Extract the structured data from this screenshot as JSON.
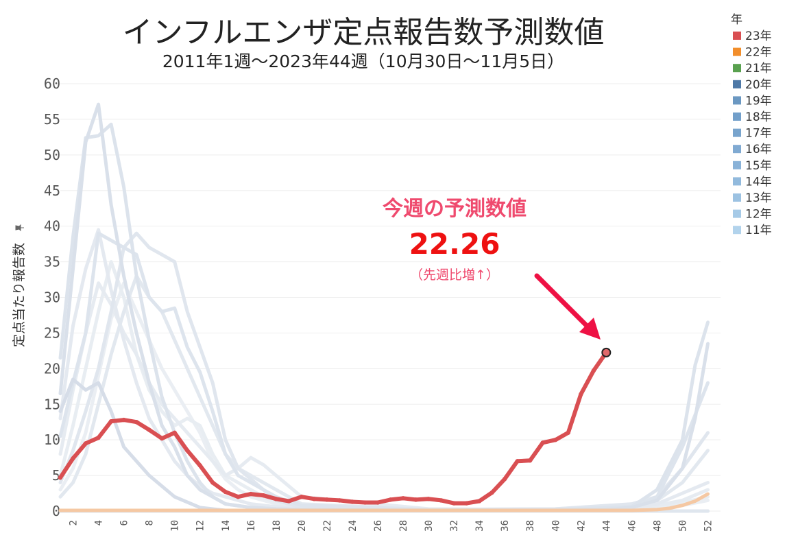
{
  "chart_data": {
    "type": "line",
    "title": "インフルエンザ定点報告数予測数値",
    "subtitle": "2011年1週～2023年44週（10月30日～11月5日）",
    "ylabel": "定点当たり報告数",
    "ylabel_icon": "pin-icon",
    "ylim": [
      0,
      60
    ],
    "yticks": [
      0,
      5,
      10,
      15,
      20,
      25,
      30,
      35,
      40,
      45,
      50,
      55,
      60
    ],
    "xlim": [
      1,
      53
    ],
    "xticks": [
      2,
      4,
      6,
      8,
      10,
      12,
      14,
      16,
      18,
      20,
      22,
      24,
      26,
      28,
      30,
      32,
      34,
      36,
      38,
      40,
      42,
      44,
      46,
      48,
      50,
      52
    ],
    "grid": true,
    "legend": {
      "title": "年",
      "position": "top-right",
      "entries": [
        {
          "label": "23年",
          "color": "#d94f52"
        },
        {
          "label": "22年",
          "color": "#f28e2b"
        },
        {
          "label": "21年",
          "color": "#59a14f"
        },
        {
          "label": "20年",
          "color": "#4e79a7"
        },
        {
          "label": "19年",
          "color": "#6b98c2"
        },
        {
          "label": "18年",
          "color": "#729fca"
        },
        {
          "label": "17年",
          "color": "#78a4cd"
        },
        {
          "label": "16年",
          "color": "#80aad2"
        },
        {
          "label": "15年",
          "color": "#89b2d8"
        },
        {
          "label": "14年",
          "color": "#92badd"
        },
        {
          "label": "13年",
          "color": "#9cc2e2"
        },
        {
          "label": "12年",
          "color": "#a6cae7"
        },
        {
          "label": "11年",
          "color": "#b2d3ec"
        }
      ]
    },
    "series": [
      {
        "name": "23年",
        "color": "#d94f52",
        "x": [
          1,
          2,
          3,
          4,
          5,
          6,
          7,
          8,
          9,
          10,
          11,
          12,
          13,
          14,
          15,
          16,
          17,
          18,
          19,
          20,
          21,
          22,
          23,
          24,
          25,
          26,
          27,
          28,
          29,
          30,
          31,
          32,
          33,
          34,
          35,
          36,
          37,
          38,
          39,
          40,
          41,
          42,
          43,
          44
        ],
        "values": [
          4.7,
          7.4,
          9.5,
          10.3,
          12.6,
          12.8,
          12.5,
          11.4,
          10.2,
          11.0,
          8.5,
          6.4,
          4.0,
          2.7,
          2.0,
          2.4,
          2.2,
          1.7,
          1.4,
          2.0,
          1.7,
          1.6,
          1.5,
          1.3,
          1.2,
          1.2,
          1.6,
          1.8,
          1.6,
          1.7,
          1.5,
          1.1,
          1.1,
          1.4,
          2.6,
          4.5,
          7.0,
          7.1,
          9.6,
          10.0,
          11.0,
          16.4,
          19.7,
          22.26
        ]
      },
      {
        "name": "22年",
        "color": "#f5c8a3",
        "x": [
          1,
          4,
          8,
          12,
          16,
          20,
          24,
          28,
          32,
          36,
          40,
          44,
          46,
          48,
          49,
          50,
          51,
          52
        ],
        "values": [
          0.1,
          0.1,
          0.1,
          0.1,
          0.1,
          0.1,
          0.1,
          0.1,
          0.1,
          0.1,
          0.1,
          0.1,
          0.1,
          0.2,
          0.4,
          0.8,
          1.4,
          2.4
        ]
      },
      {
        "name": "21年",
        "color": "#dfe6ee",
        "x": [
          1,
          10,
          20,
          30,
          40,
          45,
          50,
          52
        ],
        "values": [
          0.0,
          0.0,
          0.0,
          0.0,
          0.0,
          0.0,
          0.0,
          0.0
        ]
      },
      {
        "name": "20年",
        "color": "#d6dde8",
        "x": [
          1,
          2,
          3,
          4,
          5,
          6,
          7,
          8,
          10,
          12,
          14,
          20,
          30,
          40,
          52
        ],
        "values": [
          14.0,
          18.5,
          17.0,
          18.0,
          14.0,
          9.0,
          7.0,
          5.0,
          2.0,
          0.5,
          0.1,
          0.0,
          0.0,
          0.0,
          0.0
        ]
      },
      {
        "name": "19年",
        "color": "#d9e0ea",
        "x": [
          1,
          2,
          3,
          4,
          5,
          6,
          7,
          8,
          9,
          10,
          11,
          12,
          14,
          16,
          18,
          20,
          30,
          40,
          44,
          46,
          48,
          50,
          51,
          52
        ],
        "values": [
          16.5,
          34.0,
          51.8,
          57.1,
          43.0,
          33.0,
          25.0,
          18.0,
          12.0,
          9.0,
          5.0,
          3.0,
          1.0,
          0.5,
          0.3,
          0.2,
          0.1,
          0.1,
          0.2,
          0.5,
          1.5,
          6.0,
          13.0,
          23.5
        ]
      },
      {
        "name": "18年",
        "color": "#dce3ec",
        "x": [
          1,
          2,
          3,
          4,
          5,
          6,
          7,
          8,
          9,
          10,
          11,
          12,
          13,
          14,
          16,
          18,
          20,
          30,
          40,
          46,
          48,
          50,
          51,
          52
        ],
        "values": [
          21.5,
          38.5,
          52.4,
          52.7,
          54.3,
          45.5,
          33.0,
          24.0,
          16.0,
          11.0,
          7.0,
          4.0,
          2.0,
          1.0,
          0.5,
          0.3,
          0.2,
          0.1,
          0.2,
          0.6,
          3.0,
          10.0,
          20.5,
          26.5
        ]
      },
      {
        "name": "17年",
        "color": "#dde4ed",
        "x": [
          1,
          2,
          3,
          4,
          5,
          6,
          7,
          8,
          9,
          10,
          11,
          12,
          13,
          14,
          15,
          16,
          17,
          18,
          20,
          30,
          40,
          46,
          48,
          50,
          52
        ],
        "values": [
          10.5,
          18.0,
          25.0,
          39.0,
          38.0,
          37.0,
          36.0,
          30.0,
          28.0,
          28.5,
          23.0,
          19.5,
          14.0,
          8.0,
          5.0,
          4.0,
          3.0,
          2.0,
          0.8,
          0.2,
          0.2,
          0.5,
          2.0,
          9.0,
          18.0
        ]
      },
      {
        "name": "16年",
        "color": "#e0e6ee",
        "x": [
          1,
          2,
          3,
          4,
          5,
          6,
          7,
          8,
          9,
          10,
          11,
          12,
          13,
          14,
          15,
          16,
          17,
          18,
          20,
          30,
          40,
          46,
          48,
          50,
          52
        ],
        "values": [
          4.0,
          8.5,
          14.0,
          20.0,
          28.0,
          37.0,
          39.0,
          37.0,
          36.0,
          35.0,
          28.0,
          23.0,
          18.0,
          10.0,
          6.0,
          4.5,
          3.0,
          1.5,
          0.5,
          0.2,
          0.3,
          1.0,
          2.0,
          6.0,
          11.0
        ]
      },
      {
        "name": "15年",
        "color": "#e2e8ef",
        "x": [
          1,
          2,
          3,
          4,
          5,
          6,
          7,
          8,
          9,
          10,
          11,
          12,
          13,
          14,
          15,
          16,
          17,
          18,
          20,
          30,
          40,
          46,
          48,
          50,
          52
        ],
        "values": [
          2.0,
          4.0,
          8.0,
          15.0,
          22.0,
          28.0,
          33.0,
          30.0,
          28.0,
          24.0,
          20.0,
          16.0,
          12.0,
          8.0,
          6.0,
          5.0,
          4.0,
          3.0,
          1.0,
          0.2,
          0.3,
          0.8,
          1.5,
          4.0,
          8.5
        ]
      },
      {
        "name": "14年",
        "color": "#e4e9f0",
        "x": [
          1,
          2,
          3,
          4,
          5,
          6,
          7,
          8,
          9,
          10,
          11,
          12,
          13,
          14,
          15,
          16,
          17,
          18,
          20,
          30,
          40,
          46,
          48,
          50,
          52
        ],
        "values": [
          13.0,
          26.0,
          34.0,
          39.5,
          31.0,
          24.0,
          18.0,
          13.0,
          10.0,
          7.0,
          5.0,
          3.5,
          2.5,
          2.0,
          1.5,
          1.0,
          0.8,
          0.6,
          0.3,
          0.1,
          0.2,
          0.5,
          1.0,
          2.5,
          4.0
        ]
      },
      {
        "name": "13年",
        "color": "#e6ebf1",
        "x": [
          1,
          2,
          3,
          4,
          5,
          6,
          7,
          8,
          9,
          10,
          11,
          12,
          13,
          14,
          15,
          16,
          17,
          18,
          20,
          30,
          40,
          46,
          48,
          50,
          52
        ],
        "values": [
          8.0,
          17.0,
          25.0,
          32.0,
          29.0,
          25.0,
          22.0,
          18.0,
          15.0,
          13.0,
          11.0,
          9.0,
          7.0,
          5.0,
          6.0,
          7.5,
          6.5,
          5.0,
          2.0,
          0.3,
          0.2,
          0.4,
          0.8,
          1.5,
          3.0
        ]
      },
      {
        "name": "12年",
        "color": "#e8edf2",
        "x": [
          1,
          2,
          3,
          4,
          5,
          6,
          7,
          8,
          9,
          10,
          11,
          12,
          13,
          14,
          15,
          16,
          17,
          18,
          20,
          30,
          40,
          46,
          48,
          50,
          52
        ],
        "values": [
          5.0,
          12.0,
          20.0,
          28.0,
          35.0,
          30.0,
          22.0,
          17.0,
          14.0,
          12.0,
          13.0,
          12.0,
          8.0,
          5.0,
          4.0,
          3.0,
          2.0,
          1.0,
          0.5,
          0.1,
          0.2,
          0.3,
          0.6,
          1.2,
          2.0
        ]
      },
      {
        "name": "11年",
        "color": "#eaeef3",
        "x": [
          1,
          2,
          3,
          4,
          5,
          6,
          7,
          8,
          9,
          10,
          11,
          12,
          13,
          14,
          15,
          16,
          17,
          18,
          20,
          30,
          40,
          46,
          48,
          50,
          52
        ],
        "values": [
          3.0,
          6.0,
          11.0,
          19.0,
          27.0,
          32.0,
          28.0,
          24.0,
          20.0,
          17.0,
          14.0,
          11.0,
          7.0,
          4.5,
          3.0,
          2.0,
          1.5,
          1.0,
          0.4,
          0.1,
          0.1,
          0.2,
          0.4,
          0.8,
          1.5
        ]
      }
    ],
    "annotation": {
      "heading": "今週の予測数値",
      "value": "22.26",
      "note": "（先週比増↑）",
      "x": 44,
      "y": 22.26,
      "heading_color": "#ef4a6e",
      "value_color": "#ee1111",
      "arrow_color": "#ee1144"
    }
  }
}
